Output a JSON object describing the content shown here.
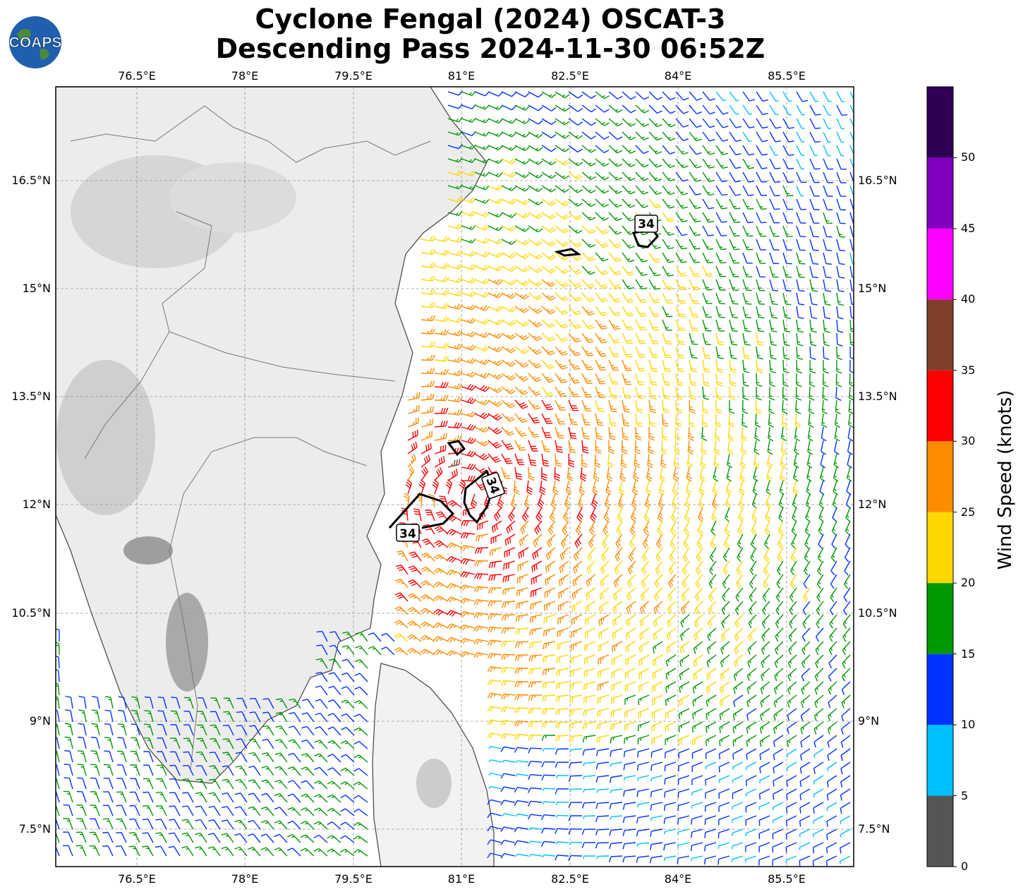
{
  "title": {
    "line1": "Cyclone Fengal (2024) OSCAT-3",
    "line2": "Descending Pass 2024-11-30 06:52Z"
  },
  "logo": {
    "text": "COAPS",
    "icon": "globe-icon"
  },
  "axes": {
    "lon_labels": [
      "76.5°E",
      "78°E",
      "79.5°E",
      "81°E",
      "82.5°E",
      "84°E",
      "85.5°E"
    ],
    "lat_labels": [
      "16.5°N",
      "15°N",
      "13.5°N",
      "12°N",
      "10.5°N",
      "9°N",
      "7.5°N"
    ]
  },
  "contours": {
    "label": "34"
  },
  "colorbar": {
    "title": "Wind Speed (knots)",
    "ticks": [
      "0",
      "5",
      "10",
      "15",
      "20",
      "25",
      "30",
      "35",
      "40",
      "45",
      "50"
    ],
    "bins": [
      {
        "min": 0,
        "max": 5,
        "color": "#555555"
      },
      {
        "min": 5,
        "max": 10,
        "color": "#00bfff"
      },
      {
        "min": 10,
        "max": 15,
        "color": "#0033ff"
      },
      {
        "min": 15,
        "max": 20,
        "color": "#009900"
      },
      {
        "min": 20,
        "max": 25,
        "color": "#ffd700"
      },
      {
        "min": 25,
        "max": 30,
        "color": "#ff8c00"
      },
      {
        "min": 30,
        "max": 35,
        "color": "#ff0000"
      },
      {
        "min": 35,
        "max": 40,
        "color": "#7f3f2b"
      },
      {
        "min": 40,
        "max": 45,
        "color": "#ff00ff"
      },
      {
        "min": 45,
        "max": 50,
        "color": "#7f00bf"
      },
      {
        "min": 50,
        "max": 55,
        "color": "#2e0054"
      }
    ]
  }
}
